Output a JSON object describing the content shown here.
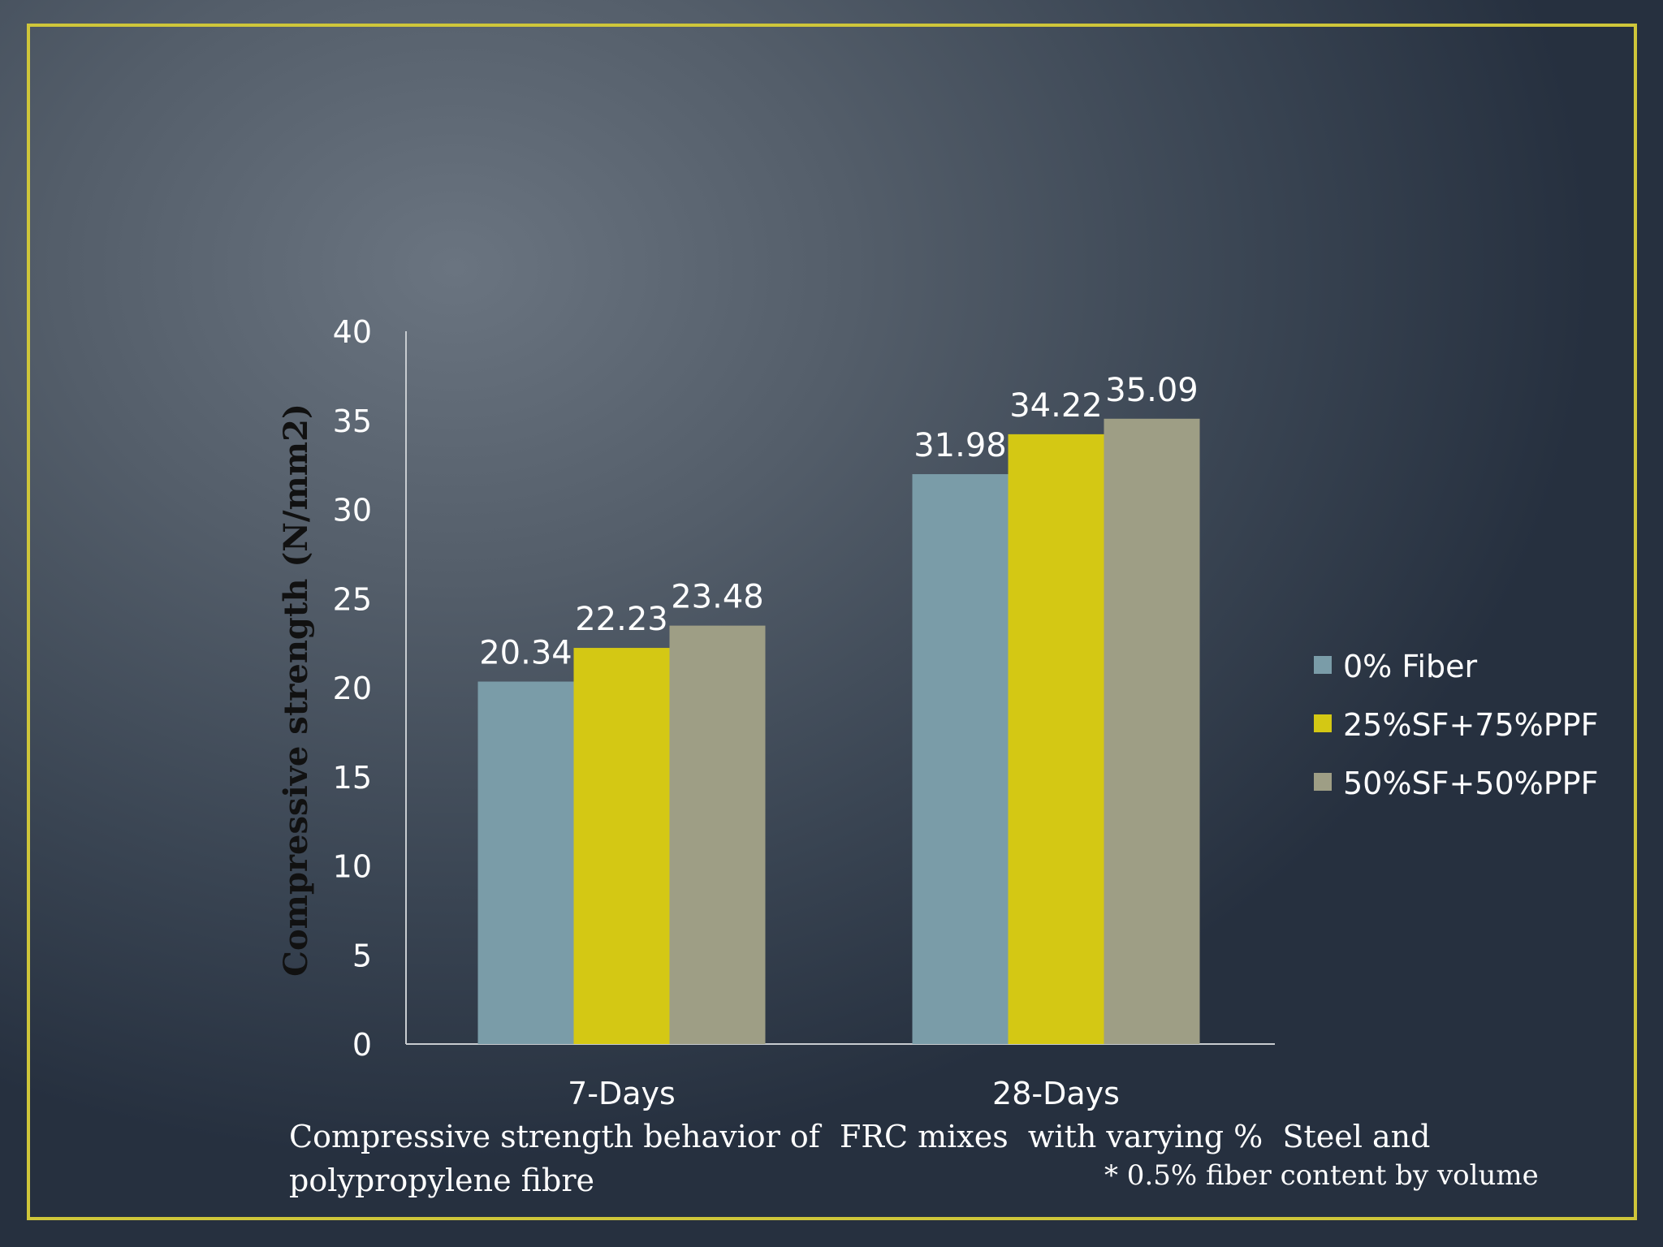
{
  "chart_data": {
    "type": "bar",
    "categories": [
      "7-Days",
      "28-Days"
    ],
    "series": [
      {
        "name": "0% Fiber",
        "values": [
          20.34,
          31.98
        ],
        "color": "#7a9ca8"
      },
      {
        "name": "25%SF+75%PPF",
        "values": [
          22.23,
          34.22
        ],
        "color": "#d4c814"
      },
      {
        "name": "50%SF+50%PPF",
        "values": [
          23.48,
          35.09
        ],
        "color": "#9e9e85"
      }
    ],
    "data_labels": [
      [
        "20.34",
        "31.98"
      ],
      [
        "22.23",
        "34.22"
      ],
      [
        "23.48",
        "35.09"
      ]
    ],
    "yticks": [
      "0",
      "5",
      "10",
      "15",
      "20",
      "25",
      "30",
      "35",
      "40"
    ],
    "ylabel": "Compressive strength (N/mm2)",
    "xlabel": "",
    "ylim": [
      0,
      40
    ],
    "grid": false,
    "legend_position": "right"
  },
  "caption": {
    "line1": "Compressive strength behavior of  FRC mixes  with varying %  Steel and",
    "line2": "polypropylene fibre",
    "note": "* 0.5% fiber content by volume"
  },
  "colors": {
    "frame": "#cfc63a",
    "axis": "#c8ccd0"
  }
}
